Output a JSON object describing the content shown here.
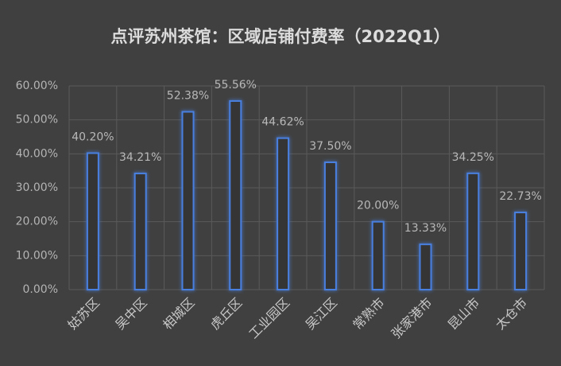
{
  "chart_data": {
    "type": "bar",
    "title": "点评苏州茶馆：区域店铺付费率（2022Q1）",
    "categories": [
      "姑苏区",
      "吴中区",
      "相城区",
      "虎丘区",
      "工业园区",
      "吴江区",
      "常熟市",
      "张家港市",
      "昆山市",
      "太仓市"
    ],
    "values": [
      40.2,
      34.21,
      52.38,
      55.56,
      44.62,
      37.5,
      20.0,
      13.33,
      34.25,
      22.73
    ],
    "value_labels": [
      "40.20%",
      "34.21%",
      "52.38%",
      "55.56%",
      "44.62%",
      "37.50%",
      "20.00%",
      "13.33%",
      "34.25%",
      "22.73%"
    ],
    "color": "#4a80e0",
    "ylim": [
      0,
      60
    ],
    "yticks": [
      {
        "value": 0,
        "label": "0.00%"
      },
      {
        "value": 10,
        "label": "10.00%"
      },
      {
        "value": 20,
        "label": "20.00%"
      },
      {
        "value": 30,
        "label": "30.00%"
      },
      {
        "value": 40,
        "label": "40.00%"
      },
      {
        "value": 50,
        "label": "50.00%"
      },
      {
        "value": 60,
        "label": "60.00%"
      }
    ],
    "grid": true
  }
}
